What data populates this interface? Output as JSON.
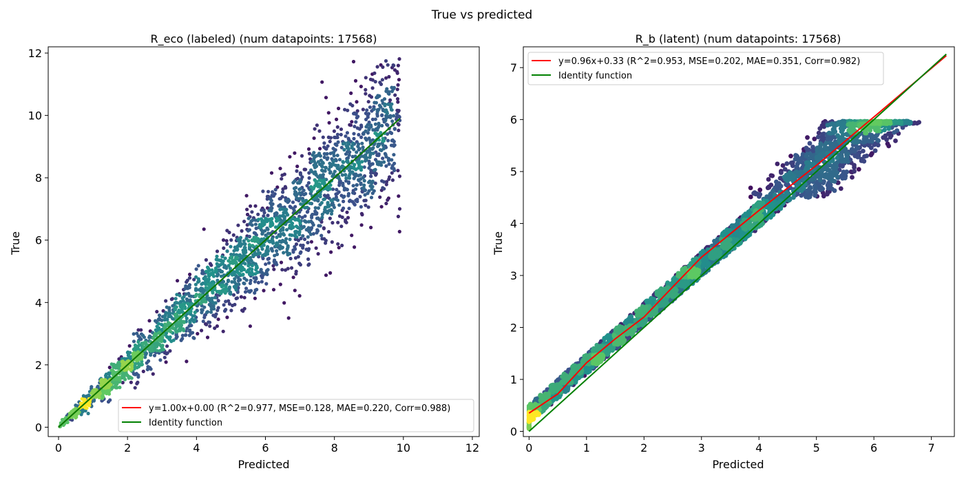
{
  "figure": {
    "title": "True vs predicted"
  },
  "chart_data": [
    {
      "type": "scatter",
      "title": "R_eco (labeled) (num datapoints: 17568)",
      "xlabel": "Predicted",
      "ylabel": "True",
      "xlim": [
        -0.3,
        12.2
      ],
      "ylim": [
        -0.3,
        12.2
      ],
      "xticks": [
        0,
        2,
        4,
        6,
        8,
        10,
        12
      ],
      "yticks": [
        0,
        2,
        4,
        6,
        8,
        10,
        12
      ],
      "num_points": 17568,
      "colormap": "viridis (point density)",
      "point_cloud": {
        "x_range": [
          0.0,
          9.9
        ],
        "y_range": [
          0.0,
          11.9
        ],
        "spread_slope": 0.12,
        "seed": 11,
        "kind": "labeled"
      },
      "series": [
        {
          "name": "y=1.00x+0.00 (R^2=0.977, MSE=0.128, MAE=0.220, Corr=0.988)",
          "kind": "fit",
          "color": "#ff0000",
          "x": [
            0.0,
            9.9
          ],
          "y": [
            0.0,
            9.9
          ]
        },
        {
          "name": "Identity function",
          "kind": "identity",
          "color": "#008000",
          "x": [
            0.0,
            9.9
          ],
          "y": [
            0.0,
            9.9
          ]
        }
      ],
      "legend_position": "bottom-right"
    },
    {
      "type": "scatter",
      "title": "R_b (latent) (num datapoints: 17568)",
      "xlabel": "Predicted",
      "ylabel": "True",
      "xlim": [
        -0.1,
        7.4
      ],
      "ylim": [
        -0.1,
        7.4
      ],
      "xticks": [
        0,
        1,
        2,
        3,
        4,
        5,
        6,
        7
      ],
      "yticks": [
        0,
        1,
        2,
        3,
        4,
        5,
        6,
        7
      ],
      "num_points": 17568,
      "colormap": "viridis (point density)",
      "point_cloud": {
        "x_range": [
          0.0,
          7.1
        ],
        "y_range": [
          0.05,
          5.97
        ],
        "seed": 29,
        "kind": "latent",
        "cap": 5.97
      },
      "series": [
        {
          "name": "y=0.96x+0.33 (R^2=0.953, MSE=0.202, MAE=0.351, Corr=0.982)",
          "kind": "fit",
          "color": "#ff0000",
          "x": [
            0.0,
            0.5,
            1.0,
            1.5,
            2.0,
            2.5,
            3.0,
            4.0,
            5.0,
            6.0,
            7.26
          ],
          "y": [
            0.35,
            0.72,
            1.32,
            1.78,
            2.2,
            2.78,
            3.35,
            4.25,
            5.12,
            6.05,
            7.23
          ]
        },
        {
          "name": "Identity function",
          "kind": "identity",
          "color": "#008000",
          "x": [
            0.0,
            7.26
          ],
          "y": [
            0.0,
            7.26
          ]
        }
      ],
      "legend_position": "top-left"
    }
  ]
}
